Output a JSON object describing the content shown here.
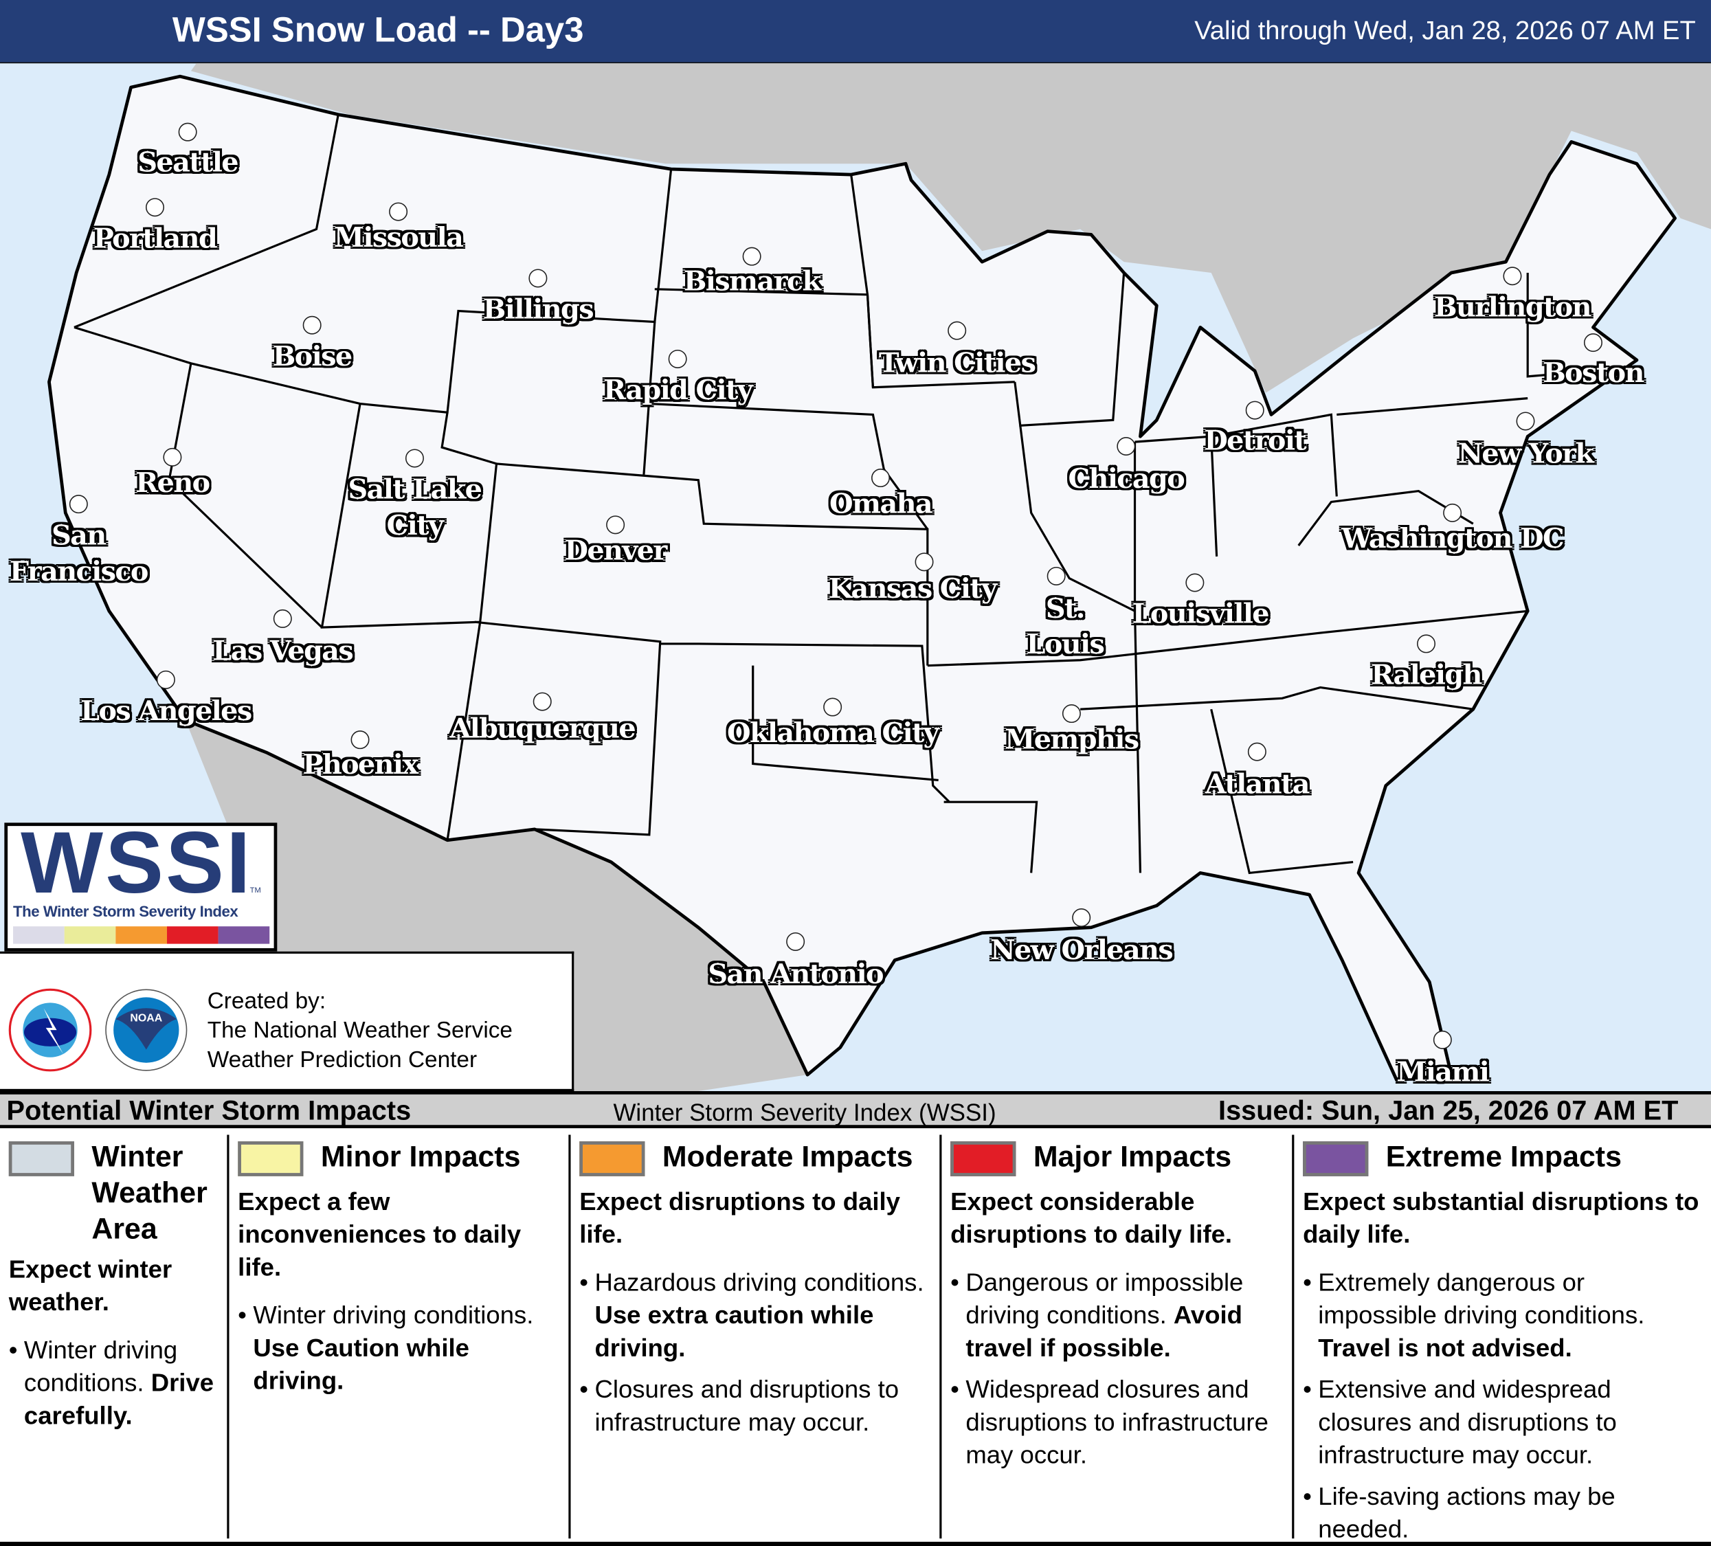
{
  "header": {
    "title": "WSSI Snow Load -- Day3",
    "valid": "Valid through Wed, Jan 28, 2026 07 AM ET"
  },
  "colors": {
    "title_bar": "#243e78",
    "water": "#dcecfa",
    "foreign_land": "#c8c8c8",
    "us_land": "#f7f8fb",
    "winter_weather": "#d3dce3",
    "minor": "#f8f4a4",
    "moderate": "#f59a30",
    "major": "#e21d26",
    "extreme": "#7a54a0"
  },
  "cities": [
    {
      "lines": [
        "Seattle"
      ]
    },
    {
      "lines": [
        "Portland"
      ]
    },
    {
      "lines": [
        "Missoula"
      ]
    },
    {
      "lines": [
        "Billings"
      ]
    },
    {
      "lines": [
        "Bismarck"
      ]
    },
    {
      "lines": [
        "Boise"
      ]
    },
    {
      "lines": [
        "Rapid City"
      ]
    },
    {
      "lines": [
        "Twin Cities"
      ]
    },
    {
      "lines": [
        "Burlington"
      ]
    },
    {
      "lines": [
        "Boston"
      ]
    },
    {
      "lines": [
        "Detroit"
      ]
    },
    {
      "lines": [
        "New York"
      ]
    },
    {
      "lines": [
        "Chicago"
      ]
    },
    {
      "lines": [
        "Reno"
      ]
    },
    {
      "lines": [
        "Salt Lake",
        "City"
      ]
    },
    {
      "lines": [
        "Omaha"
      ]
    },
    {
      "lines": [
        "Denver"
      ]
    },
    {
      "lines": [
        "Washington DC"
      ]
    },
    {
      "lines": [
        "San",
        "Francisco"
      ]
    },
    {
      "lines": [
        "Kansas City"
      ]
    },
    {
      "lines": [
        "St.",
        "Louis"
      ]
    },
    {
      "lines": [
        "Louisville"
      ]
    },
    {
      "lines": [
        "Las Vegas"
      ]
    },
    {
      "lines": [
        "Raleigh"
      ]
    },
    {
      "lines": [
        "Los Angeles"
      ]
    },
    {
      "lines": [
        "Oklahoma City"
      ]
    },
    {
      "lines": [
        "Memphis"
      ]
    },
    {
      "lines": [
        "Albuquerque"
      ]
    },
    {
      "lines": [
        "Phoenix"
      ]
    },
    {
      "lines": [
        "Atlanta"
      ]
    },
    {
      "lines": [
        "New Orleans"
      ]
    },
    {
      "lines": [
        "San Antonio"
      ]
    },
    {
      "lines": [
        "Miami"
      ]
    }
  ],
  "logo": {
    "word": "WSSI",
    "tm": "TM",
    "subtitle": "The Winter Storm Severity Index"
  },
  "credit": {
    "line1": "Created by:",
    "line2": "The National Weather Service",
    "line3": "Weather Prediction Center",
    "nws_logo": "NATIONAL WEATHER SERVICE",
    "noaa_logo": "NOAA"
  },
  "legend": {
    "heading": "Potential Winter Storm Impacts",
    "index_name": "Winter Storm Severity Index (WSSI)",
    "issued": "Issued: Sun, Jan 25, 2026 07 AM ET",
    "columns": [
      {
        "title": "Winter Weather Area",
        "lead": "Expect winter weather.",
        "bullets": [
          {
            "text": "Winter driving conditions. ",
            "bold": "Drive carefully."
          }
        ]
      },
      {
        "title": "Minor Impacts",
        "lead": "Expect a few inconveniences to daily life.",
        "bullets": [
          {
            "text": "Winter driving conditions. ",
            "bold": "Use Caution while driving."
          }
        ]
      },
      {
        "title": "Moderate Impacts",
        "lead": "Expect disruptions to daily life.",
        "bullets": [
          {
            "text": "Hazardous driving conditions. ",
            "bold": "Use extra caution while driving."
          },
          {
            "text": "Closures and disruptions to infrastructure may occur.",
            "bold": ""
          }
        ]
      },
      {
        "title": "Major Impacts",
        "lead": "Expect considerable disruptions to daily life.",
        "bullets": [
          {
            "text": "Dangerous or impossible driving conditions. ",
            "bold": "Avoid travel if possible."
          },
          {
            "text": "Widespread closures and disruptions to infrastructure may occur.",
            "bold": ""
          }
        ]
      },
      {
        "title": "Extreme Impacts",
        "lead": "Expect substantial disruptions to daily life.",
        "bullets": [
          {
            "text": "Extremely dangerous or impossible driving conditions. ",
            "bold": "Travel is not advised."
          },
          {
            "text": "Extensive and widespread closures and disruptions to infrastructure may occur.",
            "bold": ""
          },
          {
            "text": "Life-saving actions may be needed.",
            "bold": ""
          }
        ]
      }
    ]
  }
}
